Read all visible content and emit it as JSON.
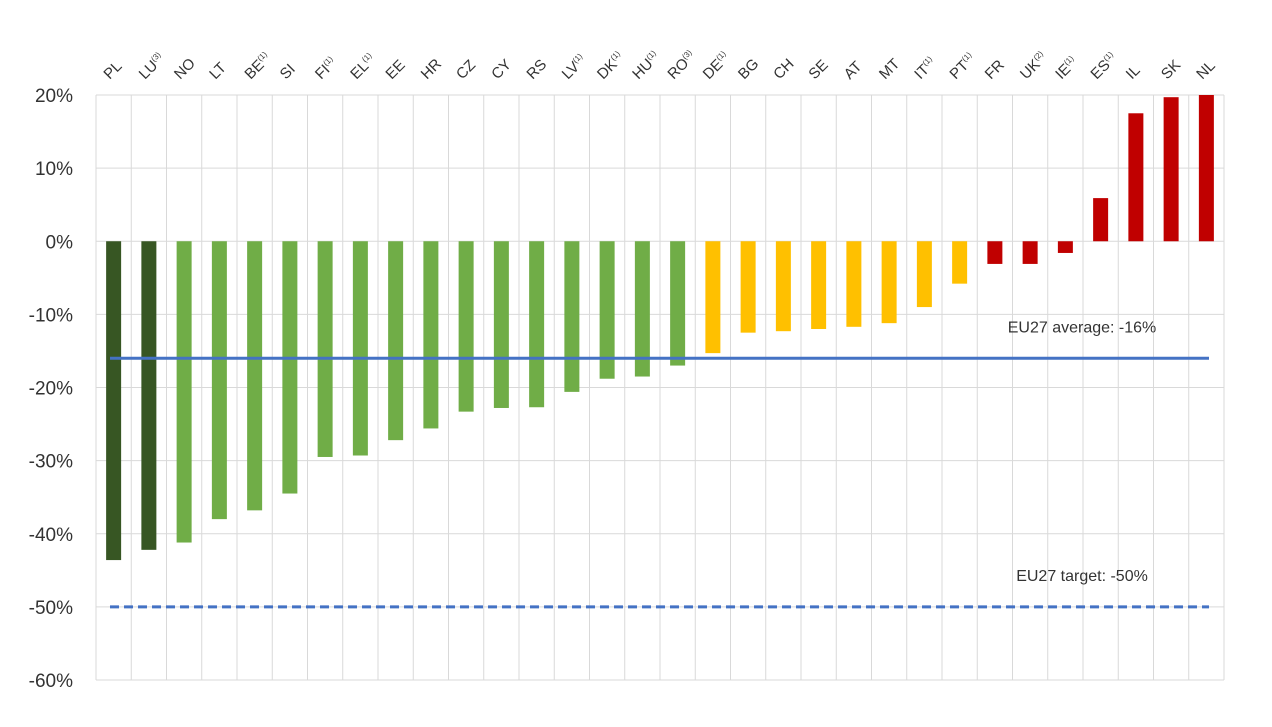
{
  "chart_data": {
    "type": "bar",
    "title": "",
    "xlabel": "",
    "ylabel": "",
    "ylim": [
      -0.6,
      0.2
    ],
    "y_ticks": [
      0.2,
      0.1,
      0,
      -0.1,
      -0.2,
      -0.3,
      -0.4,
      -0.5,
      -0.6
    ],
    "y_tick_labels": [
      "20%",
      "10%",
      "0%",
      "-10%",
      "-20%",
      "-30%",
      "-40%",
      "-50%",
      "-60%"
    ],
    "grid": true,
    "categories": [
      {
        "label": "PL",
        "sup": ""
      },
      {
        "label": "LU",
        "sup": "(3)"
      },
      {
        "label": "NO",
        "sup": ""
      },
      {
        "label": "LT",
        "sup": ""
      },
      {
        "label": "BE",
        "sup": "(1)"
      },
      {
        "label": "SI",
        "sup": ""
      },
      {
        "label": "FI",
        "sup": "(1)"
      },
      {
        "label": "EL",
        "sup": "(1)"
      },
      {
        "label": "EE",
        "sup": ""
      },
      {
        "label": "HR",
        "sup": ""
      },
      {
        "label": "CZ",
        "sup": ""
      },
      {
        "label": "CY",
        "sup": ""
      },
      {
        "label": "RS",
        "sup": ""
      },
      {
        "label": "LV",
        "sup": "(1)"
      },
      {
        "label": "DK",
        "sup": "(1)"
      },
      {
        "label": "HU",
        "sup": "(1)"
      },
      {
        "label": "RO",
        "sup": "(3)"
      },
      {
        "label": "DE",
        "sup": "(1)"
      },
      {
        "label": "BG",
        "sup": ""
      },
      {
        "label": "CH",
        "sup": ""
      },
      {
        "label": "SE",
        "sup": ""
      },
      {
        "label": "AT",
        "sup": ""
      },
      {
        "label": "MT",
        "sup": ""
      },
      {
        "label": "IT",
        "sup": "(1)"
      },
      {
        "label": "PT",
        "sup": "(1)"
      },
      {
        "label": "FR",
        "sup": ""
      },
      {
        "label": "UK",
        "sup": "(2)"
      },
      {
        "label": "IE",
        "sup": "(1)"
      },
      {
        "label": "ES",
        "sup": "(1)"
      },
      {
        "label": "IL",
        "sup": ""
      },
      {
        "label": "SK",
        "sup": ""
      },
      {
        "label": "NL",
        "sup": ""
      }
    ],
    "values": [
      -0.436,
      -0.422,
      -0.412,
      -0.38,
      -0.368,
      -0.345,
      -0.295,
      -0.293,
      -0.272,
      -0.256,
      -0.233,
      -0.228,
      -0.227,
      -0.206,
      -0.188,
      -0.185,
      -0.17,
      -0.153,
      -0.125,
      -0.123,
      -0.12,
      -0.117,
      -0.112,
      -0.09,
      -0.058,
      -0.031,
      -0.031,
      -0.016,
      0.059,
      0.175,
      0.197,
      0.2
    ],
    "bar_colors": [
      "#375623",
      "#375623",
      "#70ad47",
      "#70ad47",
      "#70ad47",
      "#70ad47",
      "#70ad47",
      "#70ad47",
      "#70ad47",
      "#70ad47",
      "#70ad47",
      "#70ad47",
      "#70ad47",
      "#70ad47",
      "#70ad47",
      "#70ad47",
      "#70ad47",
      "#ffc000",
      "#ffc000",
      "#ffc000",
      "#ffc000",
      "#ffc000",
      "#ffc000",
      "#ffc000",
      "#ffc000",
      "#c00000",
      "#c00000",
      "#c00000",
      "#c00000",
      "#c00000",
      "#c00000",
      "#c00000"
    ],
    "reference_lines": [
      {
        "label": "EU27 average: -16%",
        "value": -0.16,
        "style": "solid",
        "color": "#4472c4"
      },
      {
        "label": "EU27 target: -50%",
        "value": -0.5,
        "style": "dashed",
        "color": "#4472c4"
      }
    ]
  }
}
